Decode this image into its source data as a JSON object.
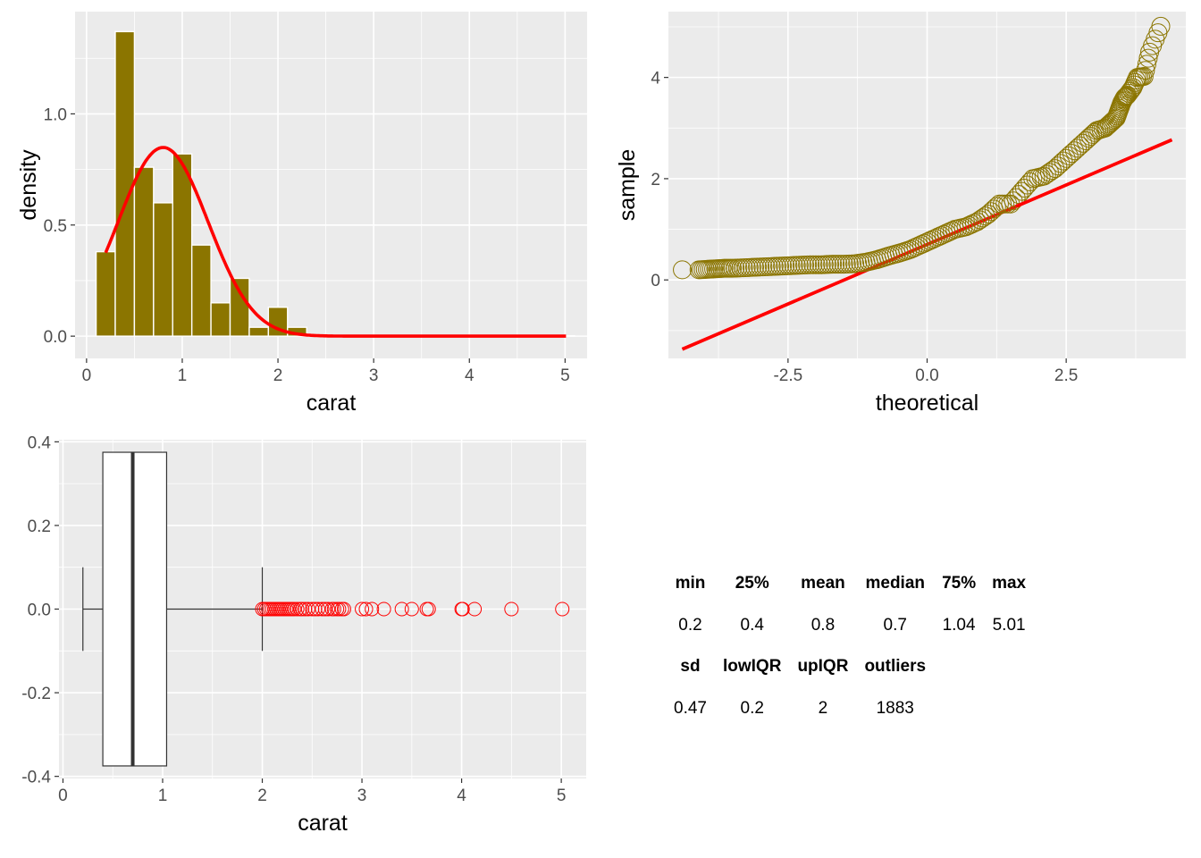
{
  "chart_data": [
    {
      "type": "bar",
      "subtype": "histogram-with-normal-density",
      "xlabel": "carat",
      "ylabel": "density",
      "xlim": [
        -0.12,
        5.23
      ],
      "ylim": [
        -0.1,
        1.46
      ],
      "x_ticks": [
        0,
        1,
        2,
        3,
        4,
        5
      ],
      "y_ticks": [
        0.0,
        0.5,
        1.0
      ],
      "y_tick_labels": [
        "0.0",
        "0.5",
        "1.0"
      ],
      "grid": true,
      "bar_color": "#8b7500",
      "curve_color": "#ff0000",
      "bins": [
        {
          "x0": 0.1,
          "x1": 0.3,
          "density": 0.38
        },
        {
          "x0": 0.3,
          "x1": 0.5,
          "density": 1.37
        },
        {
          "x0": 0.5,
          "x1": 0.7,
          "density": 0.76
        },
        {
          "x0": 0.7,
          "x1": 0.9,
          "density": 0.6
        },
        {
          "x0": 0.9,
          "x1": 1.1,
          "density": 0.82
        },
        {
          "x0": 1.1,
          "x1": 1.3,
          "density": 0.41
        },
        {
          "x0": 1.3,
          "x1": 1.5,
          "density": 0.15
        },
        {
          "x0": 1.5,
          "x1": 1.7,
          "density": 0.26
        },
        {
          "x0": 1.7,
          "x1": 1.9,
          "density": 0.04
        },
        {
          "x0": 1.9,
          "x1": 2.1,
          "density": 0.13
        },
        {
          "x0": 2.1,
          "x1": 2.3,
          "density": 0.04
        },
        {
          "x0": 2.3,
          "x1": 2.5,
          "density": 0.005
        },
        {
          "x0": 2.5,
          "x1": 2.7,
          "density": 0.004
        },
        {
          "x0": 2.7,
          "x1": 2.9,
          "density": 0.003
        },
        {
          "x0": 2.9,
          "x1": 3.1,
          "density": 0.003
        },
        {
          "x0": 3.1,
          "x1": 3.3,
          "density": 0.002
        },
        {
          "x0": 3.3,
          "x1": 3.5,
          "density": 0.001
        },
        {
          "x0": 3.5,
          "x1": 3.7,
          "density": 0.001
        },
        {
          "x0": 3.7,
          "x1": 3.9,
          "density": 0.0005
        },
        {
          "x0": 3.9,
          "x1": 4.1,
          "density": 0.0005
        },
        {
          "x0": 4.1,
          "x1": 4.3,
          "density": 0.0005
        },
        {
          "x0": 4.3,
          "x1": 4.5,
          "density": 0.0003
        },
        {
          "x0": 4.5,
          "x1": 4.7,
          "density": 0.0003
        },
        {
          "x0": 4.7,
          "x1": 4.9,
          "density": 0.0002
        },
        {
          "x0": 4.9,
          "x1": 5.1,
          "density": 0.0002
        }
      ],
      "normal_curve": {
        "mean": 0.8,
        "sd": 0.47,
        "x_range": [
          0.2,
          5.01
        ]
      }
    },
    {
      "type": "scatter",
      "subtype": "qq-plot",
      "xlabel": "theoretical",
      "ylabel": "sample",
      "xlim": [
        -4.65,
        4.65
      ],
      "ylim": [
        -1.55,
        5.3
      ],
      "x_ticks": [
        -2.5,
        0.0,
        2.5
      ],
      "x_tick_labels": [
        "-2.5",
        "0.0",
        "2.5"
      ],
      "y_ticks": [
        0,
        2,
        4
      ],
      "y_tick_labels": [
        "0",
        "2",
        "4"
      ],
      "grid": true,
      "point_color": "#8b7500",
      "line_color": "#ff0000",
      "reference_line": {
        "intercept": 0.7,
        "slope": 0.47,
        "x_range": [
          -4.4,
          4.4
        ]
      },
      "points": [
        [
          -4.4,
          0.2
        ],
        [
          -4.1,
          0.2
        ],
        [
          -3.95,
          0.21
        ],
        [
          -3.8,
          0.22
        ],
        [
          -3.65,
          0.23
        ],
        [
          -3.5,
          0.23
        ],
        [
          -3.3,
          0.24
        ],
        [
          -3.1,
          0.25
        ],
        [
          -2.9,
          0.26
        ],
        [
          -2.7,
          0.27
        ],
        [
          -2.5,
          0.28
        ],
        [
          -2.3,
          0.29
        ],
        [
          -2.1,
          0.3
        ],
        [
          -1.9,
          0.3
        ],
        [
          -1.7,
          0.31
        ],
        [
          -1.5,
          0.31
        ],
        [
          -1.3,
          0.32
        ],
        [
          -1.1,
          0.35
        ],
        [
          -0.9,
          0.4
        ],
        [
          -0.7,
          0.47
        ],
        [
          -0.5,
          0.53
        ],
        [
          -0.3,
          0.6
        ],
        [
          -0.1,
          0.7
        ],
        [
          0.1,
          0.8
        ],
        [
          0.3,
          0.9
        ],
        [
          0.5,
          1.0
        ],
        [
          0.7,
          1.05
        ],
        [
          0.9,
          1.15
        ],
        [
          1.1,
          1.3
        ],
        [
          1.3,
          1.5
        ],
        [
          1.5,
          1.5
        ],
        [
          1.7,
          1.75
        ],
        [
          1.9,
          2.0
        ],
        [
          2.1,
          2.05
        ],
        [
          2.3,
          2.2
        ],
        [
          2.5,
          2.4
        ],
        [
          2.7,
          2.6
        ],
        [
          2.9,
          2.8
        ],
        [
          3.05,
          2.95
        ],
        [
          3.2,
          3.0
        ],
        [
          3.3,
          3.1
        ],
        [
          3.4,
          3.2
        ],
        [
          3.45,
          3.35
        ],
        [
          3.5,
          3.5
        ],
        [
          3.55,
          3.6
        ],
        [
          3.6,
          3.65
        ],
        [
          3.7,
          3.8
        ],
        [
          3.78,
          4.0
        ],
        [
          3.9,
          4.02
        ],
        [
          4.0,
          4.5
        ],
        [
          4.2,
          5.01
        ]
      ]
    },
    {
      "type": "boxplot",
      "xlabel": "carat",
      "xlim": [
        -0.04,
        5.25
      ],
      "ylim": [
        -0.405,
        0.405
      ],
      "x_ticks": [
        0,
        1,
        2,
        3,
        4,
        5
      ],
      "y_ticks": [
        -0.4,
        -0.2,
        0.0,
        0.2,
        0.4
      ],
      "y_tick_labels": [
        "-0.4",
        "-0.2",
        "0.0",
        "0.2",
        "0.4"
      ],
      "grid": true,
      "outlier_color": "#ff0000",
      "box": {
        "lower_whisker": 0.2,
        "q1": 0.4,
        "median": 0.7,
        "q3": 1.04,
        "upper_whisker": 2.0
      },
      "outliers": [
        2.0,
        2.02,
        2.04,
        2.06,
        2.08,
        2.1,
        2.12,
        2.14,
        2.16,
        2.18,
        2.2,
        2.22,
        2.24,
        2.26,
        2.28,
        2.3,
        2.32,
        2.35,
        2.38,
        2.4,
        2.43,
        2.46,
        2.5,
        2.53,
        2.56,
        2.6,
        2.63,
        2.66,
        2.7,
        2.72,
        2.75,
        2.77,
        2.8,
        2.82,
        3.0,
        3.04,
        3.1,
        3.22,
        3.4,
        3.5,
        3.65,
        3.67,
        4.0,
        4.01,
        4.13,
        4.5,
        5.01
      ]
    },
    {
      "type": "table",
      "rows": [
        [
          "min",
          "25%",
          "mean",
          "median",
          "75%",
          "max"
        ],
        [
          "0.2",
          "0.4",
          "0.8",
          "0.7",
          "1.04",
          "5.01"
        ],
        [
          "sd",
          "lowIQR",
          "upIQR",
          "outliers",
          "",
          ""
        ],
        [
          "0.47",
          "0.2",
          "2",
          "1883",
          "",
          ""
        ]
      ]
    }
  ]
}
